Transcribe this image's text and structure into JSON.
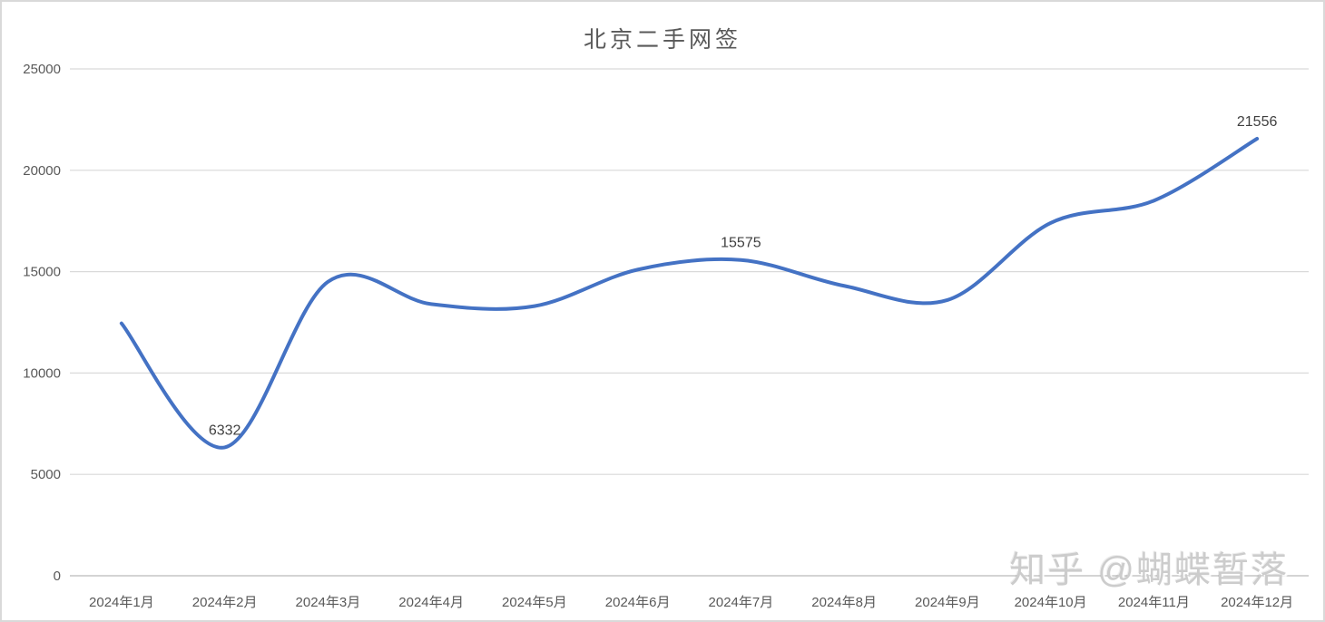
{
  "chart_data": {
    "type": "line",
    "title": "北京二手网签",
    "categories": [
      "2024年1月",
      "2024年2月",
      "2024年3月",
      "2024年4月",
      "2024年5月",
      "2024年6月",
      "2024年7月",
      "2024年8月",
      "2024年9月",
      "2024年10月",
      "2024年11月",
      "2024年12月"
    ],
    "series": [
      {
        "name": "北京二手网签",
        "values": [
          12450,
          6332,
          14500,
          13400,
          13300,
          15100,
          15575,
          14300,
          13600,
          17400,
          18500,
          21556
        ],
        "point_labels": [
          "",
          "6332",
          "",
          "",
          "",
          "",
          "15575",
          "",
          "",
          "",
          "",
          "21556"
        ]
      }
    ],
    "xlabel": "",
    "ylabel": "",
    "ylim": [
      0,
      25000
    ],
    "ytick_step": 5000,
    "yticks": [
      "0",
      "5000",
      "10000",
      "15000",
      "20000",
      "25000"
    ],
    "grid": "horizontal-major",
    "legend_position": "none",
    "line_smoothing": true,
    "colors": {
      "line": "#4472C4",
      "gridline": "#D9D9D9",
      "axis_line": "#C6C6C6",
      "axis_text": "#595959",
      "data_label_text": "#404040",
      "title_text": "#595959",
      "background": "#FFFFFF"
    }
  },
  "watermark": {
    "text": "知乎 @蝴蝶暂落"
  }
}
